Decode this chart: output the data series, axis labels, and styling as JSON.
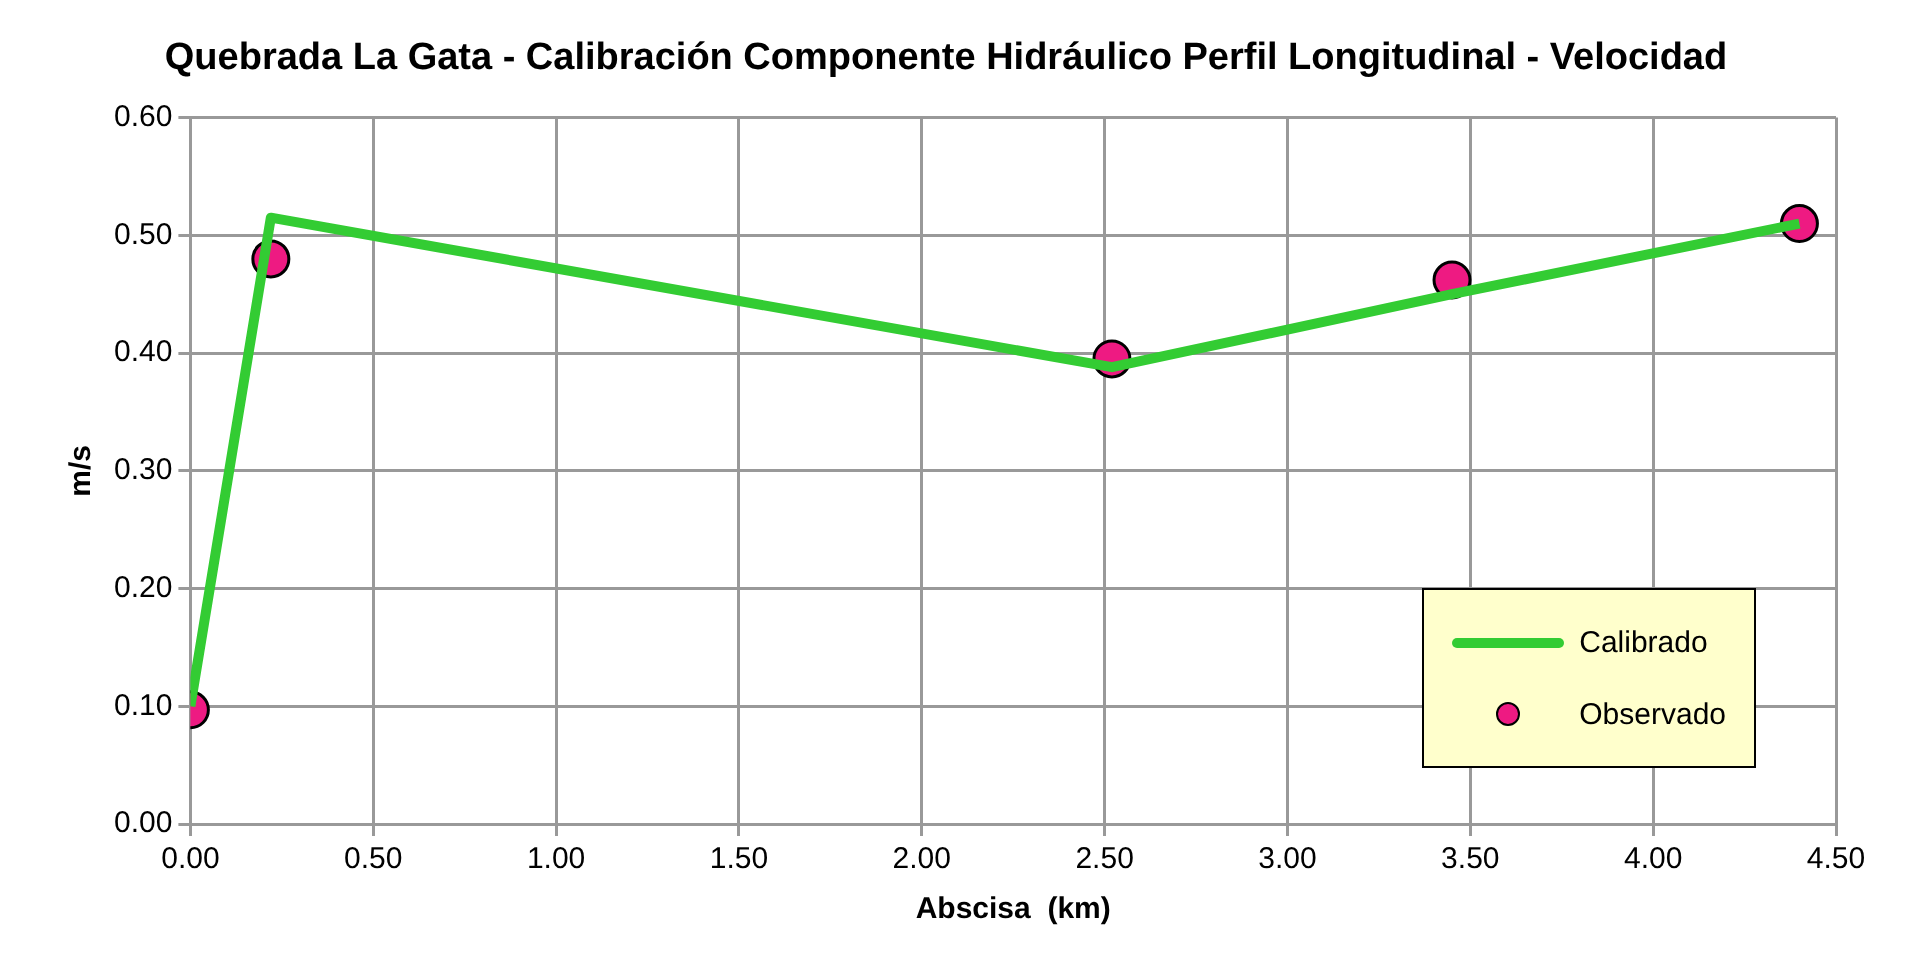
{
  "chart_data": {
    "type": "line",
    "title": "Quebrada La Gata - Calibración Componente Hidráulico Perfil Longitudinal - Velocidad",
    "xlabel": "Abscisa  (km)",
    "ylabel": "m/s",
    "xlim": [
      0,
      4.5
    ],
    "xticks": [
      {
        "value": 0,
        "label": "0.00"
      },
      {
        "value": 0.5,
        "label": "0.50"
      },
      {
        "value": 1,
        "label": "1.00"
      },
      {
        "value": 1.5,
        "label": "1.50"
      },
      {
        "value": 2,
        "label": "2.00"
      },
      {
        "value": 2.5,
        "label": "2.50"
      },
      {
        "value": 3,
        "label": "3.00"
      },
      {
        "value": 3.5,
        "label": "3.50"
      },
      {
        "value": 4,
        "label": "4.00"
      },
      {
        "value": 4.5,
        "label": "4.50"
      }
    ],
    "ylim": [
      0,
      0.6
    ],
    "yticks": [
      {
        "value": 0,
        "label": "0.00"
      },
      {
        "value": 0.1,
        "label": "0.10"
      },
      {
        "value": 0.2,
        "label": "0.20"
      },
      {
        "value": 0.3,
        "label": "0.30"
      },
      {
        "value": 0.4,
        "label": "0.40"
      },
      {
        "value": 0.5,
        "label": "0.50"
      },
      {
        "value": 0.6,
        "label": "0.60"
      }
    ],
    "grid": true,
    "legend": "bottom right",
    "series": [
      {
        "name": "Calibrado",
        "type": "line",
        "color": "#33cc33",
        "marker": "none",
        "x": [
          0,
          0.22,
          2.52,
          3.45,
          4.4
        ],
        "values": [
          0.1,
          0.515,
          0.388,
          0.45,
          0.51
        ]
      },
      {
        "name": "Observado",
        "type": "scatter",
        "color": "#ee1a82",
        "marker": "circle",
        "x": [
          0,
          0.22,
          2.52,
          3.45,
          4.4
        ],
        "values": [
          0.097,
          0.48,
          0.395,
          0.462,
          0.51
        ]
      }
    ]
  }
}
